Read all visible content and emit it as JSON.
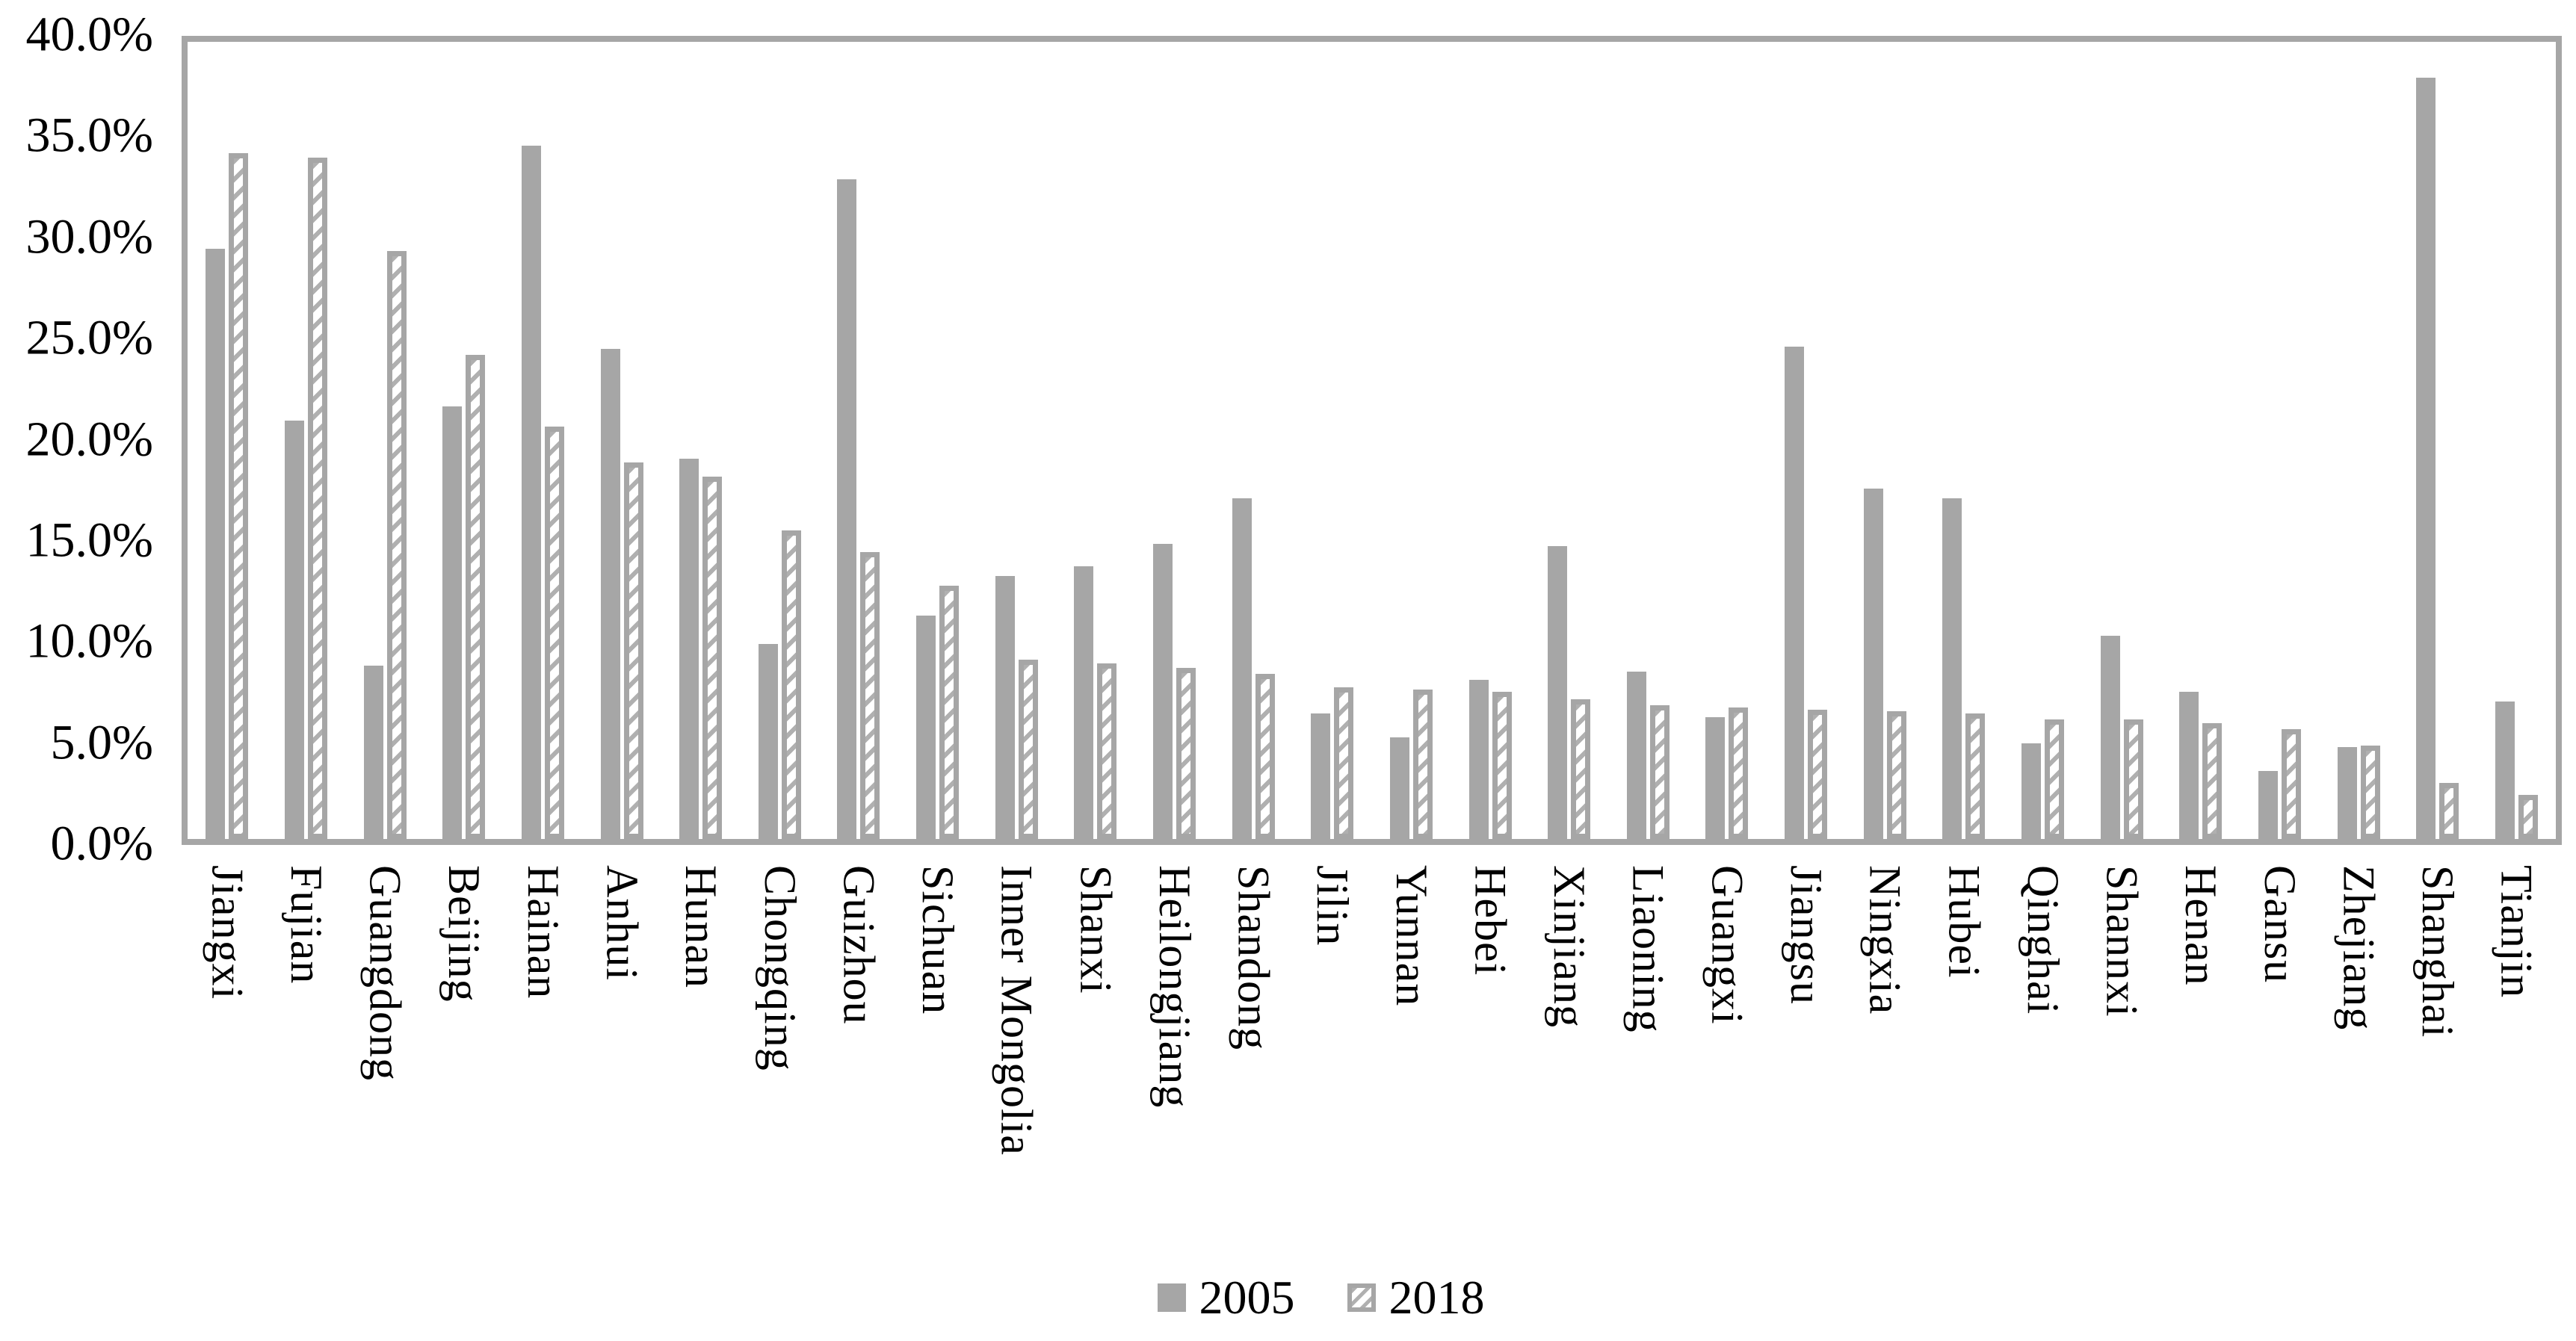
{
  "chart_data": {
    "type": "bar",
    "title": "",
    "xlabel": "",
    "ylabel": "",
    "ylim": [
      0,
      40
    ],
    "grid": "off",
    "legend_position": "bottom-center",
    "ytick_labels": [
      "40.0%",
      "35.0%",
      "30.0%",
      "25.0%",
      "20.0%",
      "15.0%",
      "10.0%",
      "5.0%",
      "0.0%"
    ],
    "categories": [
      "Jiangxi",
      "Fujian",
      "Guangdong",
      "Beijing",
      "Hainan",
      "Anhui",
      "Hunan",
      "Chongqing",
      "Guizhou",
      "Sichuan",
      "Inner Mongolia",
      "Shanxi",
      "Heilongjiang",
      "Shandong",
      "Jilin",
      "Yunnan",
      "Hebei",
      "Xinjiang",
      "Liaoning",
      "Guangxi",
      "Jiangsu",
      "Ningxia",
      "Hubei",
      "Qinghai",
      "Shannxi",
      "Henan",
      "Gansu",
      "Zhejiang",
      "Shanghai",
      "Tianjin"
    ],
    "series": [
      {
        "name": "2005",
        "style": "solid",
        "values": [
          29.6,
          21.0,
          8.7,
          21.7,
          34.8,
          24.6,
          19.1,
          9.8,
          33.1,
          11.2,
          13.2,
          13.7,
          14.8,
          17.1,
          6.3,
          5.1,
          8.0,
          14.7,
          8.4,
          6.1,
          24.7,
          17.6,
          17.1,
          4.8,
          10.2,
          7.4,
          3.4,
          4.6,
          38.2,
          6.9
        ]
      },
      {
        "name": "2018",
        "style": "hatched",
        "values": [
          34.4,
          34.2,
          29.5,
          24.3,
          20.7,
          18.9,
          18.2,
          15.5,
          14.4,
          12.7,
          9.0,
          8.8,
          8.6,
          8.3,
          7.6,
          7.5,
          7.4,
          7.0,
          6.7,
          6.6,
          6.5,
          6.4,
          6.3,
          6.0,
          6.0,
          5.8,
          5.5,
          4.7,
          2.8,
          2.2
        ]
      }
    ]
  },
  "legend": {
    "items": [
      {
        "label": "2005",
        "marker": "solid-square"
      },
      {
        "label": "2018",
        "marker": "hatched-square"
      }
    ]
  },
  "colors": {
    "bar_gray": "#a6a6a6",
    "hatch_gray": "#b0b0b0",
    "axis_gray": "#a6a6a6",
    "text": "#000000",
    "background": "#ffffff"
  }
}
